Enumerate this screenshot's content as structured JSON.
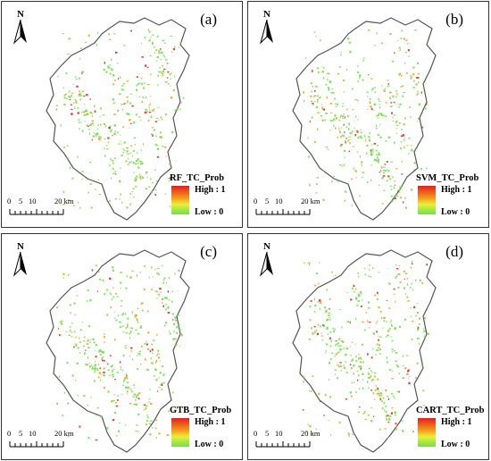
{
  "panels": [
    {
      "label": "(a)",
      "legend_title": "RF_TC_Prob",
      "high": "High : 1",
      "low": "Low : 0"
    },
    {
      "label": "(b)",
      "legend_title": "SVM_TC_Prob",
      "high": "High : 1",
      "low": "Low : 0"
    },
    {
      "label": "(c)",
      "legend_title": "GTB_TC_Prob",
      "high": "High : 1",
      "low": "Low : 0"
    },
    {
      "label": "(d)",
      "legend_title": "CART_TC_Prob",
      "high": "High : 1",
      "low": "Low : 0"
    }
  ],
  "north_label": "N",
  "scale": {
    "ticks": [
      "0",
      "5",
      "10",
      "20 km"
    ]
  },
  "colors": {
    "high": "#e21f1f",
    "mid": "#f5a21a",
    "low": "#6de04a",
    "boundary": "#555555"
  }
}
